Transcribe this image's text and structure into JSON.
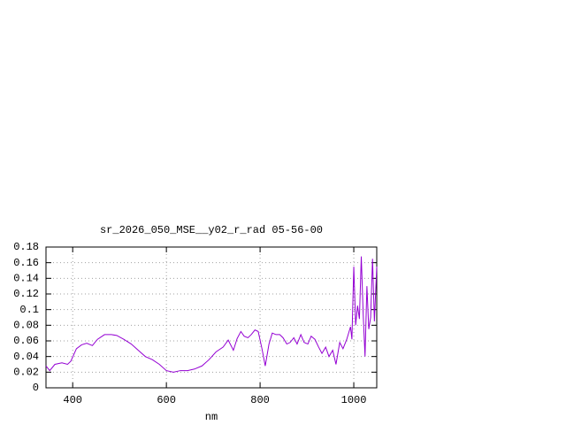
{
  "chart_data": {
    "type": "line",
    "title": "sr_2026_050_MSE__y02_r_rad 05-56-00",
    "x_label": "nm",
    "xlim": [
      343,
      1049
    ],
    "ylim": [
      0,
      0.18
    ],
    "xticks": [
      400,
      600,
      800,
      1000
    ],
    "yticks": [
      0,
      0.02,
      0.04,
      0.06,
      0.08,
      0.1,
      0.12,
      0.14,
      0.16,
      0.18
    ],
    "grid": true,
    "x": [
      343,
      351,
      362,
      377,
      389,
      396,
      408,
      419,
      430,
      442,
      453,
      468,
      483,
      494,
      509,
      525,
      540,
      555,
      570,
      585,
      600,
      615,
      630,
      645,
      660,
      676,
      691,
      706,
      721,
      732,
      743,
      751,
      759,
      766,
      774,
      781,
      789,
      796,
      804,
      811,
      819,
      826,
      834,
      842,
      849,
      857,
      864,
      872,
      879,
      887,
      894,
      902,
      909,
      917,
      925,
      932,
      940,
      947,
      955,
      962,
      970,
      977,
      985,
      993,
      996,
      1000,
      1004,
      1008,
      1012,
      1016,
      1020,
      1024,
      1028,
      1032,
      1036,
      1040,
      1044,
      1049
    ],
    "series": [
      {
        "name": "sr_2026_050_MSE__y02_r_rad",
        "color": "#9400d3",
        "values": [
          0.028,
          0.022,
          0.03,
          0.032,
          0.03,
          0.034,
          0.05,
          0.055,
          0.057,
          0.054,
          0.062,
          0.068,
          0.068,
          0.067,
          0.062,
          0.056,
          0.048,
          0.04,
          0.036,
          0.03,
          0.022,
          0.02,
          0.022,
          0.022,
          0.024,
          0.028,
          0.036,
          0.046,
          0.052,
          0.061,
          0.048,
          0.063,
          0.072,
          0.066,
          0.064,
          0.068,
          0.074,
          0.072,
          0.05,
          0.028,
          0.056,
          0.07,
          0.068,
          0.068,
          0.064,
          0.056,
          0.058,
          0.064,
          0.056,
          0.068,
          0.058,
          0.056,
          0.066,
          0.062,
          0.052,
          0.044,
          0.052,
          0.04,
          0.048,
          0.03,
          0.058,
          0.05,
          0.062,
          0.078,
          0.062,
          0.155,
          0.08,
          0.105,
          0.088,
          0.168,
          0.095,
          0.04,
          0.13,
          0.075,
          0.09,
          0.165,
          0.085,
          0.155
        ]
      }
    ]
  }
}
